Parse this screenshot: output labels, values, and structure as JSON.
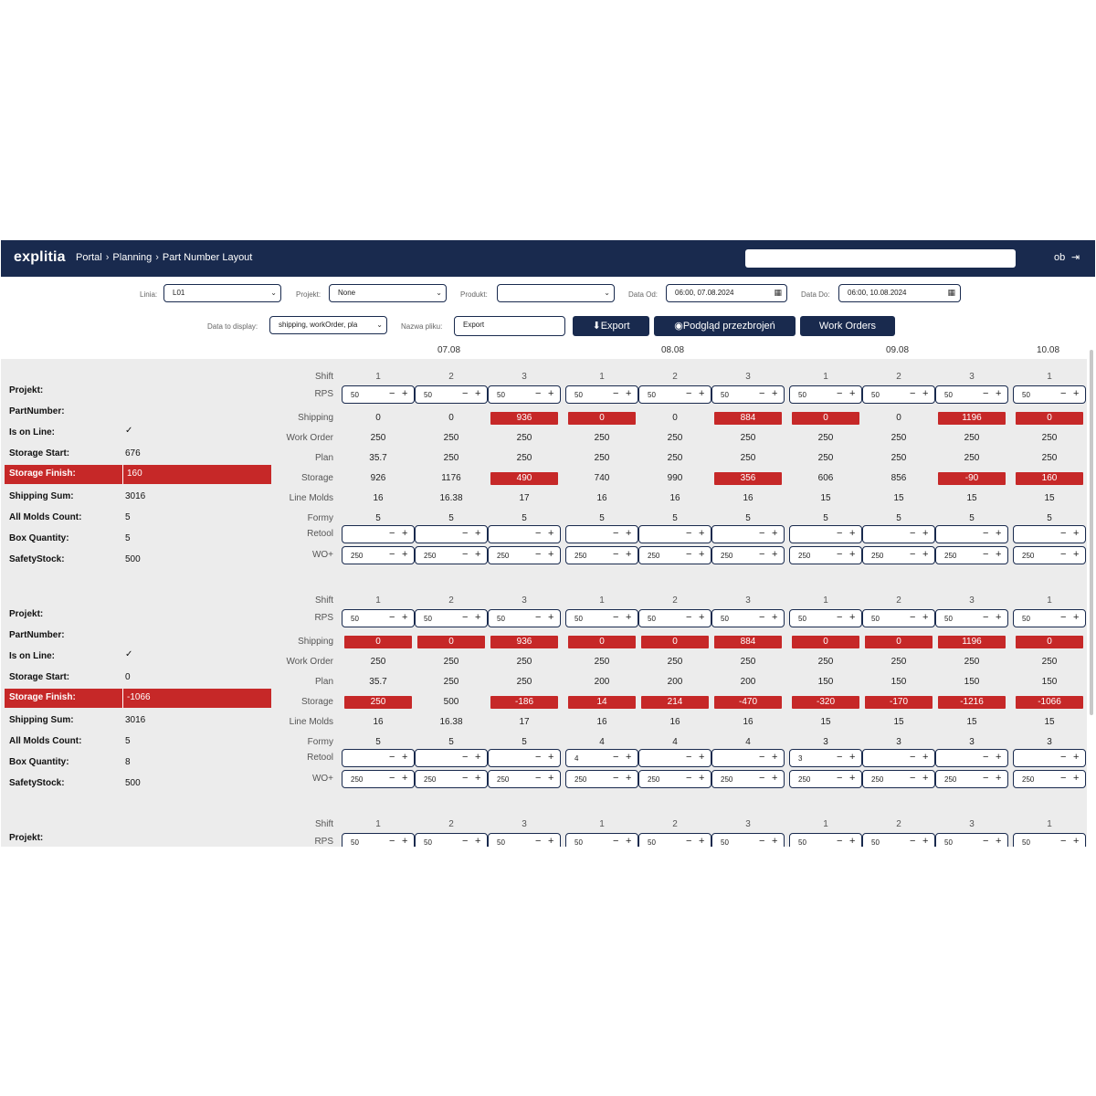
{
  "header": {
    "logo": "explitia",
    "breadcrumb": [
      "Portal",
      "Planning",
      "Part Number Layout"
    ],
    "user": "ob",
    "logout_icon": "logout-icon"
  },
  "filters": {
    "linia_label": "Linia:",
    "linia_value": "L01",
    "projekt_label": "Projekt:",
    "projekt_value": "None",
    "produkt_label": "Produkt:",
    "produkt_value": "",
    "data_od_label": "Data Od:",
    "data_od_value": "06:00, 07.08.2024",
    "data_do_label": "Data Do:",
    "data_do_value": "06:00, 10.08.2024",
    "display_label": "Data to display:",
    "display_value": "shipping, workOrder, pla",
    "filename_label": "Nazwa pliku:",
    "filename_value": "Export"
  },
  "buttons": {
    "export": "Export",
    "preview": "Podgląd przezbrojeń",
    "work_orders": "Work Orders"
  },
  "dates": [
    "07.08",
    "08.08",
    "09.08",
    "10.08"
  ],
  "shifts": [
    "1",
    "2",
    "3",
    "1",
    "2",
    "3",
    "1",
    "2",
    "3",
    "1"
  ],
  "row_labels": {
    "shift": "Shift",
    "rps": "RPS",
    "shipping": "Shipping",
    "work_order": "Work Order",
    "plan": "Plan",
    "storage": "Storage",
    "line_molds": "Line Molds",
    "formy": "Formy",
    "retool": "Retool",
    "wo": "WO+"
  },
  "info_labels": {
    "projekt": "Projekt:",
    "part_number": "PartNumber:",
    "is_on_line": "Is on Line:",
    "storage_start": "Storage Start:",
    "storage_finish": "Storage Finish:",
    "shipping_sum": "Shipping Sum:",
    "all_molds": "All Molds Count:",
    "box_qty": "Box Quantity:",
    "safety_stock": "SafetyStock:"
  },
  "status_colors": {
    "alert": "#c62828",
    "brand": "#192a4e"
  },
  "blocks": [
    {
      "info": {
        "projekt": "",
        "part_number": "",
        "is_on_line": "✓",
        "storage_start": "676",
        "storage_finish": "160",
        "shipping_sum": "3016",
        "all_molds": "5",
        "box_qty": "5",
        "safety_stock": "500"
      },
      "rps": [
        "50",
        "50",
        "50",
        "50",
        "50",
        "50",
        "50",
        "50",
        "50",
        "50"
      ],
      "shipping": [
        "0",
        "0",
        "936",
        "0",
        "0",
        "884",
        "0",
        "0",
        "1196",
        "0"
      ],
      "shipping_red": [
        false,
        false,
        true,
        true,
        false,
        true,
        true,
        false,
        true,
        true
      ],
      "work_order": [
        "250",
        "250",
        "250",
        "250",
        "250",
        "250",
        "250",
        "250",
        "250",
        "250"
      ],
      "plan": [
        "35.7",
        "250",
        "250",
        "250",
        "250",
        "250",
        "250",
        "250",
        "250",
        "250"
      ],
      "storage": [
        "926",
        "1176",
        "490",
        "740",
        "990",
        "356",
        "606",
        "856",
        "-90",
        "160"
      ],
      "storage_red": [
        false,
        false,
        true,
        false,
        false,
        true,
        false,
        false,
        true,
        true
      ],
      "line_molds": [
        "16",
        "16.38",
        "17",
        "16",
        "16",
        "16",
        "15",
        "15",
        "15",
        "15"
      ],
      "formy": [
        "5",
        "5",
        "5",
        "5",
        "5",
        "5",
        "5",
        "5",
        "5",
        "5"
      ],
      "retool": [
        "",
        "",
        "",
        "",
        "",
        "",
        "",
        "",
        "",
        ""
      ],
      "wo": [
        "250",
        "250",
        "250",
        "250",
        "250",
        "250",
        "250",
        "250",
        "250",
        "250"
      ]
    },
    {
      "info": {
        "projekt": "",
        "part_number": "",
        "is_on_line": "✓",
        "storage_start": "0",
        "storage_finish": "-1066",
        "shipping_sum": "3016",
        "all_molds": "5",
        "box_qty": "8",
        "safety_stock": "500"
      },
      "rps": [
        "50",
        "50",
        "50",
        "50",
        "50",
        "50",
        "50",
        "50",
        "50",
        "50"
      ],
      "shipping": [
        "0",
        "0",
        "936",
        "0",
        "0",
        "884",
        "0",
        "0",
        "1196",
        "0"
      ],
      "shipping_red": [
        true,
        true,
        true,
        true,
        true,
        true,
        true,
        true,
        true,
        true
      ],
      "work_order": [
        "250",
        "250",
        "250",
        "250",
        "250",
        "250",
        "250",
        "250",
        "250",
        "250"
      ],
      "plan": [
        "35.7",
        "250",
        "250",
        "200",
        "200",
        "200",
        "150",
        "150",
        "150",
        "150"
      ],
      "storage": [
        "250",
        "500",
        "-186",
        "14",
        "214",
        "-470",
        "-320",
        "-170",
        "-1216",
        "-1066"
      ],
      "storage_red": [
        true,
        false,
        true,
        true,
        true,
        true,
        true,
        true,
        true,
        true
      ],
      "line_molds": [
        "16",
        "16.38",
        "17",
        "16",
        "16",
        "16",
        "15",
        "15",
        "15",
        "15"
      ],
      "formy": [
        "5",
        "5",
        "5",
        "4",
        "4",
        "4",
        "3",
        "3",
        "3",
        "3"
      ],
      "retool": [
        "",
        "",
        "",
        "4",
        "",
        "",
        "3",
        "",
        "",
        ""
      ],
      "wo": [
        "250",
        "250",
        "250",
        "250",
        "250",
        "250",
        "250",
        "250",
        "250",
        "250"
      ]
    },
    {
      "info": {
        "projekt": ""
      },
      "rps": [
        "50",
        "50",
        "50",
        "50",
        "50",
        "50",
        "50",
        "50",
        "50",
        "50"
      ]
    }
  ]
}
